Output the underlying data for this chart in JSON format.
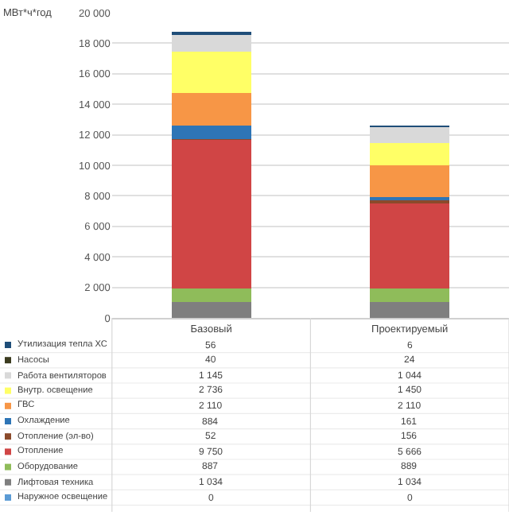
{
  "chart_data": {
    "type": "bar",
    "stacked": true,
    "ylabel": "МВт*ч*год",
    "categories": [
      "Базовый",
      "Проектируемый"
    ],
    "series": [
      {
        "name": "Наружное освещение",
        "color": "#5b9bd5",
        "values": [
          0,
          0
        ]
      },
      {
        "name": "Лифтовая техника",
        "color": "#7f7f7f",
        "values": [
          1034,
          1034
        ]
      },
      {
        "name": "Оборудование",
        "color": "#8fbc5a",
        "values": [
          887,
          889
        ]
      },
      {
        "name": "Отопление",
        "color": "#d04545",
        "values": [
          9750,
          5666
        ]
      },
      {
        "name": "Отопление (эл-во)",
        "color": "#8b4a2b",
        "values": [
          52,
          156
        ]
      },
      {
        "name": "Охлаждение",
        "color": "#2e75b6",
        "values": [
          884,
          161
        ]
      },
      {
        "name": "ГВС",
        "color": "#f79646",
        "values": [
          2110,
          2110
        ]
      },
      {
        "name": "Внутр. освещение",
        "color": "#ffff66",
        "values": [
          2736,
          1450
        ]
      },
      {
        "name": "Работа вентиляторов",
        "color": "#d9d9d9",
        "values": [
          1145,
          1044
        ]
      },
      {
        "name": "Насосы",
        "color": "#3b3b1f",
        "values": [
          40,
          24
        ]
      },
      {
        "name": "Утилизация тепла ХС",
        "color": "#1f4e79",
        "values": [
          56,
          6
        ]
      }
    ],
    "ylim": [
      0,
      20000
    ],
    "yticks": [
      {
        "value": 0,
        "label": "0"
      },
      {
        "value": 2000,
        "label": "2 000"
      },
      {
        "value": 4000,
        "label": "4 000"
      },
      {
        "value": 6000,
        "label": "6 000"
      },
      {
        "value": 8000,
        "label": "8 000"
      },
      {
        "value": 10000,
        "label": "10 000"
      },
      {
        "value": 12000,
        "label": "12 000"
      },
      {
        "value": 14000,
        "label": "14 000"
      },
      {
        "value": 16000,
        "label": "16 000"
      },
      {
        "value": 18000,
        "label": "18 000"
      },
      {
        "value": 20000,
        "label": "20 000"
      }
    ],
    "grid": "y",
    "data_labels": true,
    "legend": "bottom left"
  }
}
